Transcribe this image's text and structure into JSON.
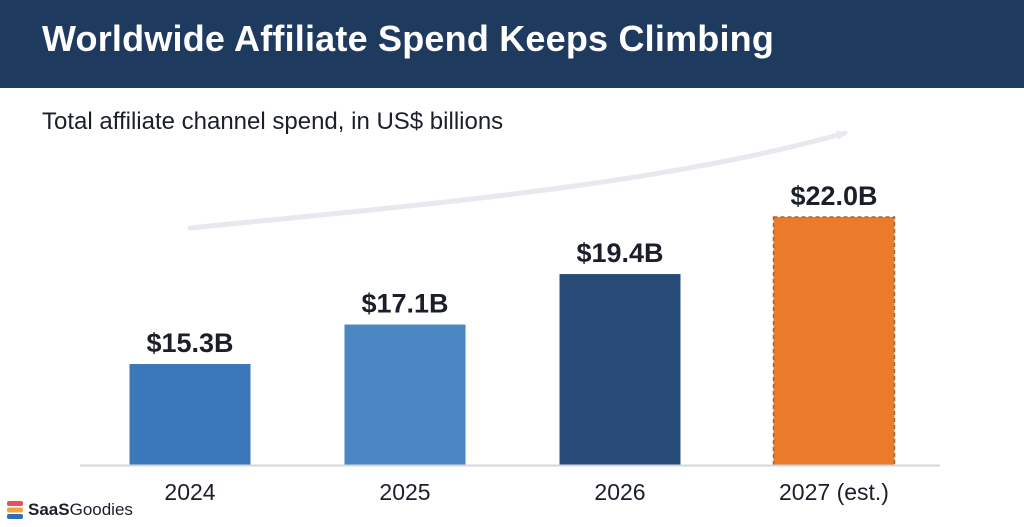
{
  "header": {
    "title": "Worldwide Affiliate Spend Keeps Climbing"
  },
  "brand": {
    "part1": "SaaS",
    "part2": "Goodies"
  },
  "colors": {
    "header": "#1f3a5f",
    "bar_2024": "#3b78b9",
    "bar_2025": "#4a86c1",
    "bar_2026": "#284b78",
    "bar_2027": "#ec7a2b",
    "arrow": "#e6e9ee",
    "axis": "#d4d7dc"
  },
  "chart_data": {
    "type": "bar",
    "title": "Total affiliate channel spend, in US$ billions",
    "categories": [
      "2024",
      "2025",
      "2026",
      "2027 (est.)"
    ],
    "values": [
      15.3,
      17.1,
      19.4,
      22.0
    ],
    "data_labels": [
      "$15.3B",
      "$17.1B",
      "$19.4B",
      "$22.0B"
    ],
    "estimated": [
      false,
      false,
      false,
      true
    ],
    "ylim": [
      0,
      22.0
    ],
    "grid": false,
    "legend": "none",
    "trend_arrow": true
  }
}
